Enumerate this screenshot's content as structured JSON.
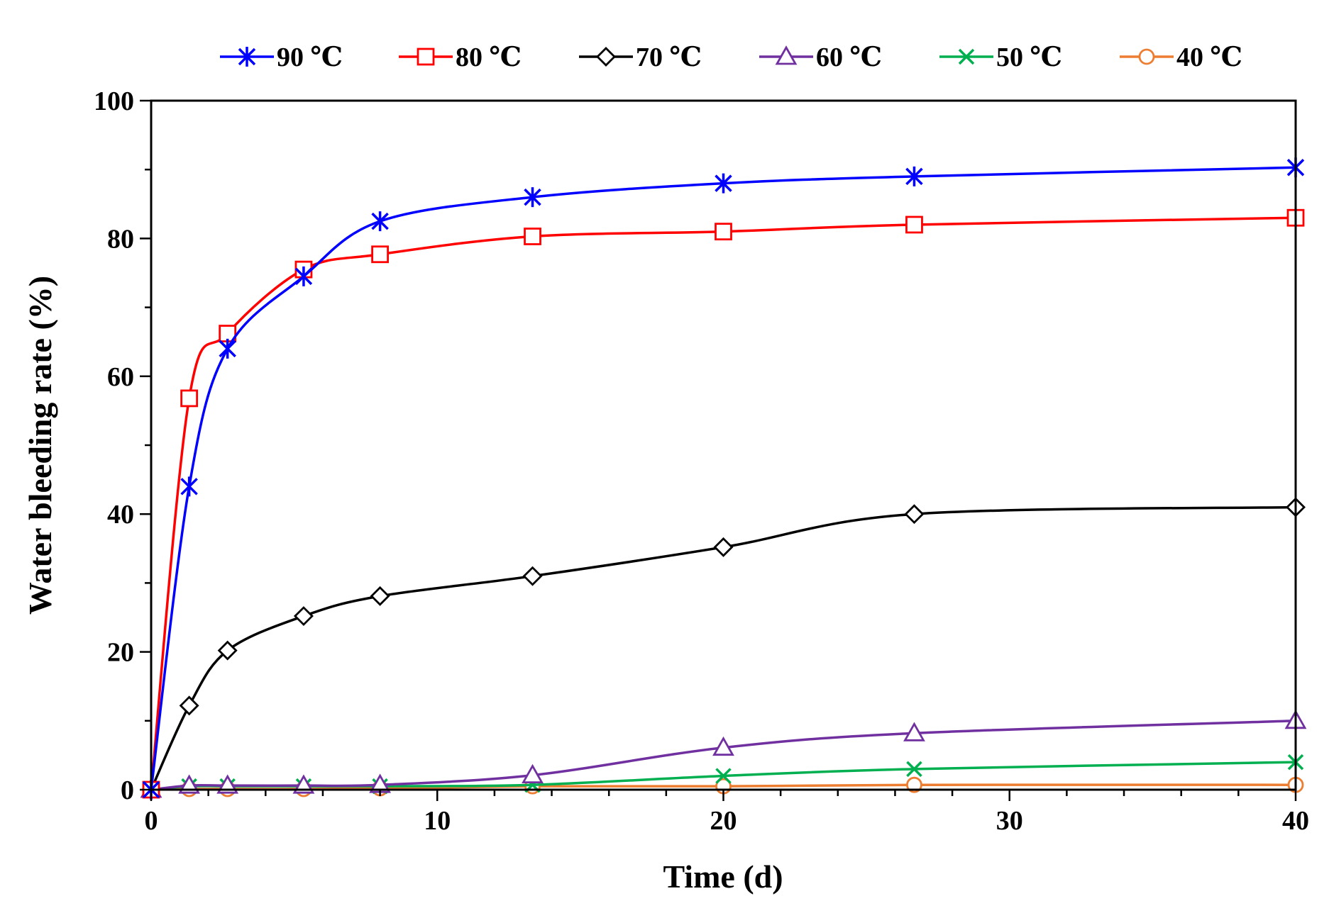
{
  "chart_data": {
    "type": "line",
    "title": "",
    "xlabel": "Time (d)",
    "ylabel": "Water bleeding rate (%)",
    "xlim": [
      0,
      40
    ],
    "ylim": [
      0,
      100
    ],
    "xticks": [
      0,
      10,
      20,
      30,
      40
    ],
    "yticks": [
      0,
      20,
      40,
      60,
      80,
      100
    ],
    "grid": false,
    "legend_position": "top",
    "series": [
      {
        "name": "90 ℃",
        "color": "#0000ff",
        "marker": "asterisk",
        "x": [
          0,
          1.33,
          2.67,
          5.33,
          8,
          13.33,
          20,
          26.67,
          40
        ],
        "y": [
          0,
          44,
          64,
          74.5,
          82.5,
          86,
          88,
          89,
          90.3
        ]
      },
      {
        "name": "80 ℃",
        "color": "#ff0000",
        "marker": "square",
        "x": [
          0,
          1.33,
          2.67,
          5.33,
          8,
          13.33,
          20,
          26.67,
          40
        ],
        "y": [
          0,
          56.8,
          66.2,
          75.5,
          77.7,
          80.3,
          81,
          82,
          83
        ]
      },
      {
        "name": "70 ℃",
        "color": "#000000",
        "marker": "diamond",
        "x": [
          0,
          1.33,
          2.67,
          5.33,
          8,
          13.33,
          20,
          26.67,
          40
        ],
        "y": [
          0,
          12.2,
          20.2,
          25.2,
          28.1,
          31,
          35.2,
          40,
          41
        ]
      },
      {
        "name": "60 ℃",
        "color": "#7030a0",
        "marker": "triangle",
        "x": [
          0,
          1.33,
          2.67,
          5.33,
          8,
          13.33,
          20,
          26.67,
          40
        ],
        "y": [
          0,
          0.6,
          0.6,
          0.6,
          0.7,
          2.1,
          6.1,
          8.2,
          10
        ]
      },
      {
        "name": "50 ℃",
        "color": "#00b050",
        "marker": "x",
        "x": [
          0,
          1.33,
          2.67,
          5.33,
          8,
          13.33,
          20,
          26.67,
          40
        ],
        "y": [
          0,
          0.5,
          0.5,
          0.5,
          0.5,
          0.7,
          2,
          3,
          4
        ]
      },
      {
        "name": "40 ℃",
        "color": "#ed7d31",
        "marker": "circle",
        "x": [
          0,
          1.33,
          2.67,
          5.33,
          8,
          13.33,
          20,
          26.67,
          40
        ],
        "y": [
          0,
          0.1,
          0.1,
          0.1,
          0.2,
          0.5,
          0.5,
          0.7,
          0.7
        ]
      }
    ]
  }
}
